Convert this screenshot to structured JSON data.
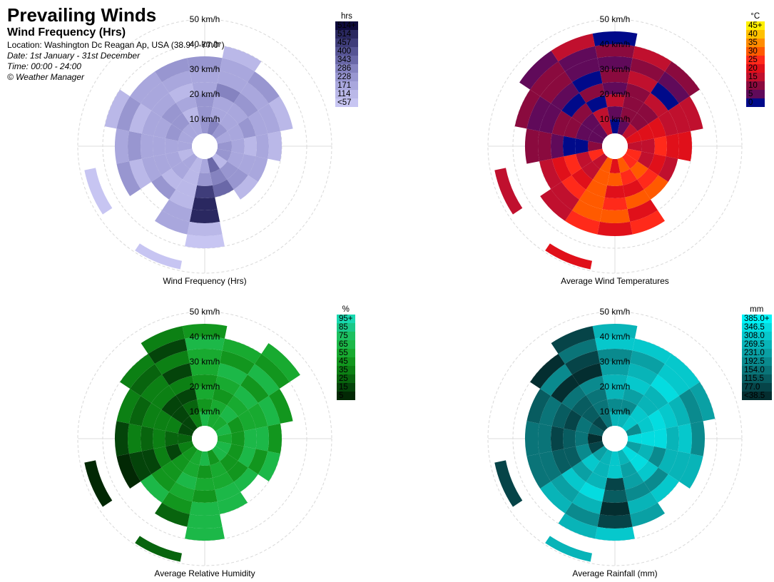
{
  "header": {
    "title": "Prevailing Winds",
    "subtitle": "Wind Frequency (Hrs)",
    "location": "Location: Washington Dc Reagan Ap, USA (38.9°, -77.0°)",
    "date": "Date: 1st January - 31st December",
    "time": "Time: 00:00 - 24:00",
    "credit": "© Weather Manager"
  },
  "charts": [
    {
      "caption": "Wind Frequency (Hrs)",
      "ring_labels": [
        "10 km/h",
        "20 km/h",
        "30 km/h",
        "40 km/h",
        "50 km/h"
      ],
      "legend": {
        "unit": "hrs",
        "labels": [
          "514+",
          "514",
          "457",
          "400",
          "343",
          "286",
          "228",
          "171",
          "114",
          "<57"
        ],
        "colors": [
          "#0e0a3c",
          "#2a2860",
          "#3f3d7a",
          "#565494",
          "#6a68a8",
          "#8583c0",
          "#9896d0",
          "#a9a7dd",
          "#bab8e8",
          "#c7c5f2"
        ]
      }
    },
    {
      "caption": "Average Wind Temperatures",
      "ring_labels": [
        "10 km/h",
        "20 km/h",
        "30 km/h",
        "40 km/h",
        "50 km/h"
      ],
      "legend": {
        "unit": "°C",
        "labels": [
          "45+",
          "40",
          "35",
          "30",
          "25",
          "20",
          "15",
          "10",
          "5",
          "0"
        ],
        "colors": [
          "#fff000",
          "#ffc000",
          "#ff8c00",
          "#ff5a00",
          "#ff2a1a",
          "#e0101a",
          "#c0102e",
          "#8a0a3e",
          "#600a5a",
          "#000a8a"
        ]
      }
    },
    {
      "caption": "Average Relative Humidity",
      "ring_labels": [
        "10 km/h",
        "20 km/h",
        "30 km/h",
        "40 km/h",
        "50 km/h"
      ],
      "legend": {
        "unit": "%",
        "labels": [
          "95+",
          "85",
          "75",
          "65",
          "55",
          "45",
          "35",
          "25",
          "15",
          "5"
        ],
        "colors": [
          "#18d8b0",
          "#1ac888",
          "#1cc060",
          "#1cb848",
          "#18aa30",
          "#12961e",
          "#0c8014",
          "#08640e",
          "#04440a",
          "#022804"
        ]
      }
    },
    {
      "caption": "Average Rainfall (mm)",
      "ring_labels": [
        "10 km/h",
        "20 km/h",
        "30 km/h",
        "40 km/h",
        "50 km/h"
      ],
      "legend": {
        "unit": "mm",
        "labels": [
          "385.0+",
          "346.5",
          "308.0",
          "269.5",
          "231.0",
          "192.5",
          "154.0",
          "115.5",
          "77.0",
          "<38.5"
        ],
        "colors": [
          "#00f4f8",
          "#04dce0",
          "#06c8cc",
          "#08b4b8",
          "#0aa0a4",
          "#0a8a8e",
          "#0a7478",
          "#085c60",
          "#064448",
          "#042e30"
        ]
      }
    }
  ]
}
